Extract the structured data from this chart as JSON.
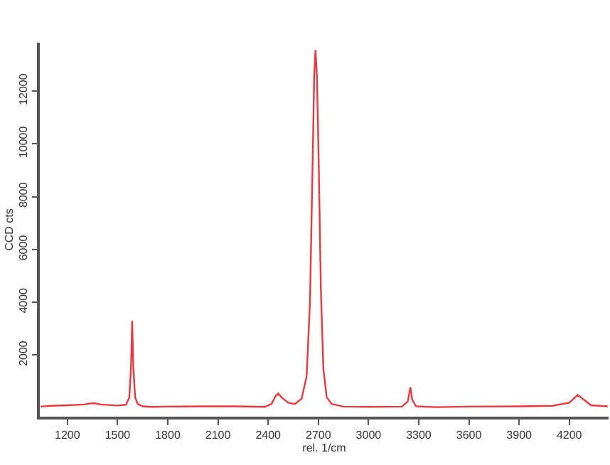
{
  "chart_data": {
    "type": "line",
    "xlabel": "rel. 1/cm",
    "ylabel": "CCD cts",
    "x": [
      1040,
      1100,
      1200,
      1300,
      1340,
      1360,
      1400,
      1500,
      1550,
      1570,
      1580,
      1587,
      1594,
      1605,
      1620,
      1650,
      1700,
      1800,
      2000,
      2200,
      2380,
      2420,
      2445,
      2460,
      2480,
      2520,
      2560,
      2600,
      2630,
      2650,
      2665,
      2675,
      2683,
      2692,
      2703,
      2715,
      2730,
      2750,
      2780,
      2850,
      3000,
      3200,
      3235,
      3250,
      3262,
      3285,
      3400,
      3600,
      3900,
      4100,
      4200,
      4250,
      4280,
      4330,
      4430
    ],
    "series": [
      {
        "color": "#e8393f",
        "values": [
          50,
          80,
          100,
          130,
          170,
          180,
          130,
          90,
          120,
          400,
          1500,
          3300,
          1500,
          400,
          150,
          60,
          40,
          50,
          60,
          60,
          40,
          150,
          450,
          550,
          400,
          200,
          150,
          350,
          1200,
          4000,
          9000,
          12500,
          13550,
          12500,
          9000,
          4500,
          1500,
          400,
          150,
          50,
          40,
          50,
          250,
          780,
          300,
          60,
          30,
          50,
          60,
          80,
          200,
          490,
          350,
          100,
          60
        ]
      }
    ],
    "xlim": [
      1035,
      4435
    ],
    "xticks": [
      1200,
      1500,
      1800,
      2100,
      2400,
      2700,
      3000,
      3300,
      3600,
      3900,
      4200
    ],
    "ylim": [
      -330,
      13830
    ],
    "yticks": [
      2000,
      4000,
      6000,
      8000,
      10000,
      12000
    ],
    "grid": false,
    "marker": "none",
    "line_style": "solid"
  }
}
